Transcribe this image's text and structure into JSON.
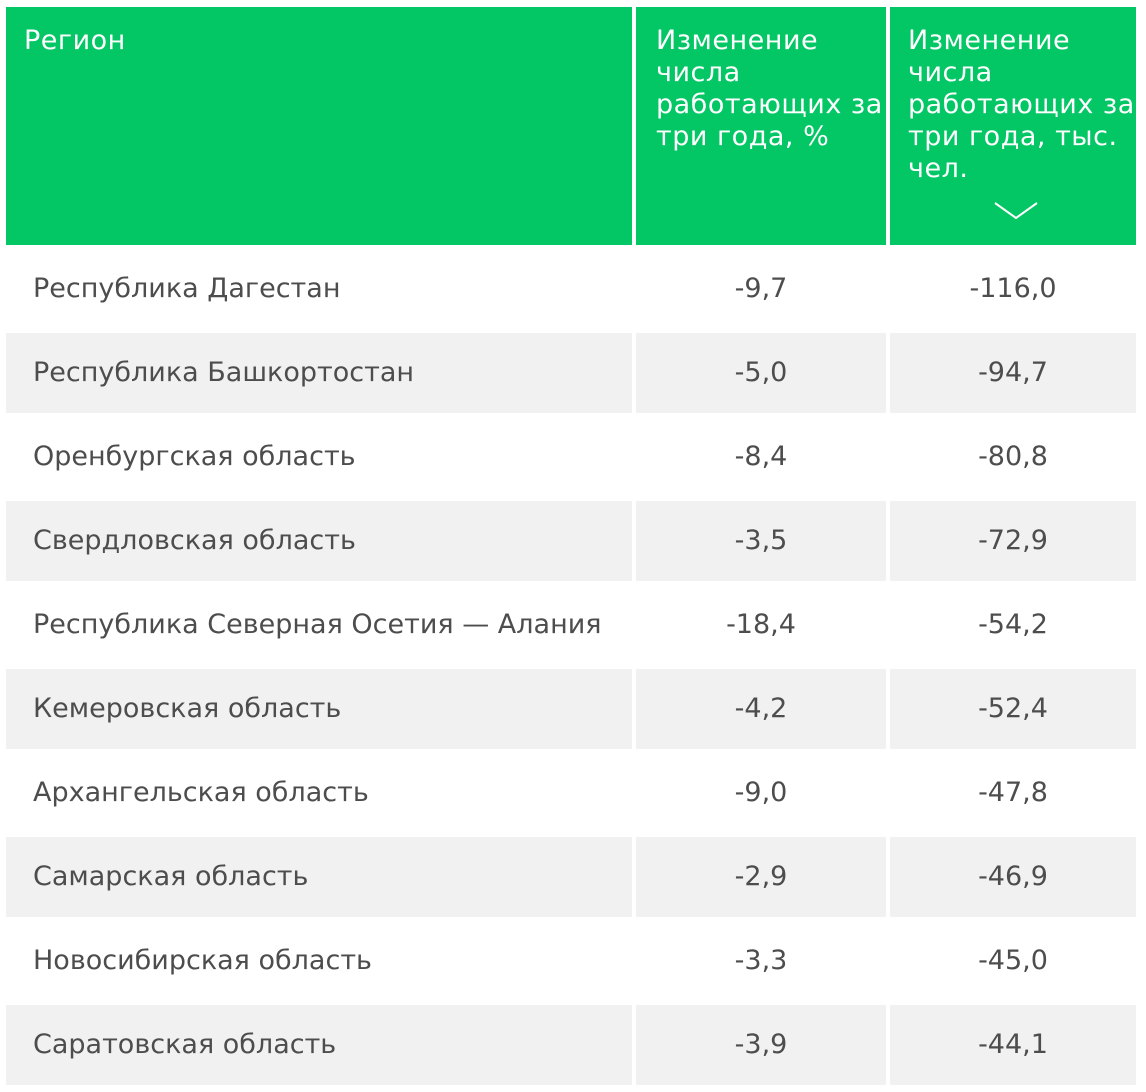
{
  "colors": {
    "header_bg": "#03c664",
    "header_text": "#ffffff",
    "row_shaded_bg": "#f1f1f1",
    "row_text": "#4d4d4d"
  },
  "header": {
    "region": "Регион",
    "change_pct": "Изменение числа работающих за три года, %",
    "change_abs": "Изменение числа работающих за три года, тыс. чел.",
    "sort_icon": "chevron-down-icon"
  },
  "rows": [
    {
      "region": "Республика Дагестан",
      "pct": "-9,7",
      "abs": "-116,0"
    },
    {
      "region": "Республика Башкортостан",
      "pct": "-5,0",
      "abs": "-94,7"
    },
    {
      "region": "Оренбургская область",
      "pct": "-8,4",
      "abs": "-80,8"
    },
    {
      "region": "Свердловская область",
      "pct": "-3,5",
      "abs": "-72,9"
    },
    {
      "region": "Республика Северная Осетия — Алания",
      "pct": "-18,4",
      "abs": "-54,2"
    },
    {
      "region": "Кемеровская область",
      "pct": "-4,2",
      "abs": "-52,4"
    },
    {
      "region": "Архангельская область",
      "pct": "-9,0",
      "abs": "-47,8"
    },
    {
      "region": "Самарская область",
      "pct": "-2,9",
      "abs": "-46,9"
    },
    {
      "region": "Новосибирская область",
      "pct": "-3,3",
      "abs": "-45,0"
    },
    {
      "region": "Саратовская область",
      "pct": "-3,9",
      "abs": "-44,1"
    }
  ]
}
